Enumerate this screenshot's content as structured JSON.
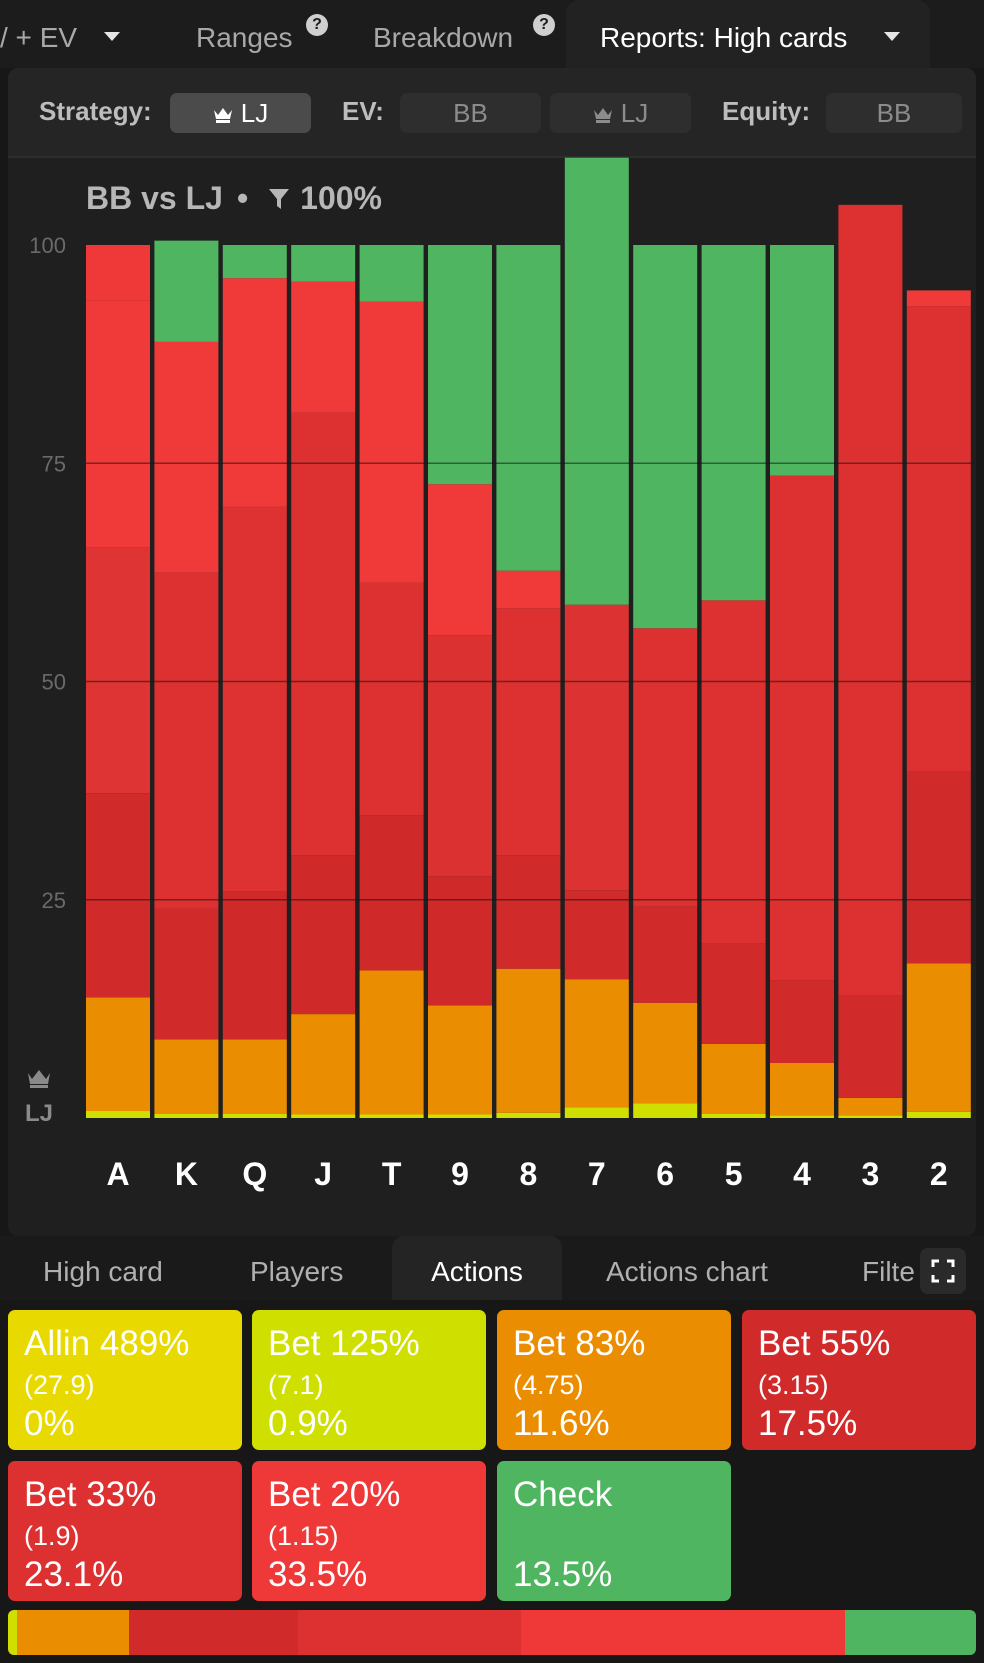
{
  "top_tabs": [
    {
      "label": "/ + EV",
      "has_caret": true
    },
    {
      "label": "Ranges",
      "help": "?"
    },
    {
      "label": "Breakdown",
      "help": "?"
    },
    {
      "label": "Reports: High cards",
      "has_caret": true,
      "active": true
    }
  ],
  "settings": {
    "strategy_label": "Strategy:",
    "strategy_value": "LJ",
    "ev_label": "EV:",
    "ev_options": [
      "BB",
      "LJ"
    ],
    "equity_label": "Equity:",
    "equity_value": "BB"
  },
  "chart_header": {
    "matchup": "BB vs LJ",
    "filter_value": "100%"
  },
  "chart_data": {
    "type": "bar",
    "stacked": true,
    "categories": [
      "A",
      "K",
      "Q",
      "J",
      "T",
      "9",
      "8",
      "7",
      "6",
      "5",
      "4",
      "3",
      "2"
    ],
    "y_ticks": [
      "100",
      "75",
      "50",
      "25"
    ],
    "ylim": [
      0,
      100
    ],
    "grid": true,
    "y_axis_player": "LJ",
    "series": [
      {
        "name": "Allin 489%",
        "color": "#e8d900",
        "values": [
          0,
          0,
          0,
          0,
          0,
          0,
          0,
          0,
          0,
          0,
          0,
          0,
          0
        ]
      },
      {
        "name": "Bet 125%",
        "color": "#cfe000",
        "values": [
          0.8,
          0.5,
          0.5,
          0.4,
          0.4,
          0.4,
          0.6,
          1.2,
          1.7,
          0.5,
          0.3,
          0.3,
          0.7
        ]
      },
      {
        "name": "Bet 83%",
        "color": "#eb8d00",
        "values": [
          13,
          8.5,
          8.5,
          11.5,
          16.5,
          12.5,
          16.5,
          14.7,
          11.5,
          8,
          6,
          2,
          17
        ]
      },
      {
        "name": "Bet 55%",
        "color": "#d12a2a",
        "values": [
          23.4,
          15,
          17,
          18.2,
          17.8,
          14.8,
          13,
          10.2,
          11,
          11.5,
          9.5,
          11.7,
          22
        ]
      },
      {
        "name": "Bet 33%",
        "color": "#dc3130",
        "values": [
          28.2,
          38.5,
          44,
          50.7,
          26.6,
          27.6,
          28.3,
          32.7,
          31.9,
          39.3,
          57.8,
          90.6,
          53.3
        ]
      },
      {
        "name": "Bet 20%",
        "color": "#ef3838",
        "values": [
          28.2,
          26.4,
          26.2,
          15,
          32.2,
          17.3,
          4.3,
          0,
          0,
          0,
          0,
          0,
          1.8
        ]
      },
      {
        "name": "Check",
        "color": "#4fb560",
        "values": [
          6.4,
          11.6,
          3.8,
          4.2,
          6.5,
          27.4,
          37.3,
          51.2,
          43.9,
          40.7,
          26.4,
          0,
          0
        ]
      }
    ],
    "bar_shades": [
      [
        null,
        null,
        null,
        null,
        "#de3434",
        "#f03939",
        "#ef3838"
      ],
      [
        null,
        null,
        null,
        "#d02a2a",
        "#dc3130",
        "#f03939",
        null
      ],
      [
        null,
        null,
        null,
        "#cf2929",
        "#dd3231",
        "#f03939",
        null
      ],
      [
        null,
        null,
        null,
        "#d02929",
        "#dc3130",
        "#f03939",
        null
      ],
      [
        null,
        null,
        null,
        "#cf2929",
        "#dc3130",
        "#f03939",
        null
      ],
      [
        null,
        null,
        null,
        "#cf2929",
        "#dc3131",
        "#f03939",
        null
      ],
      [
        null,
        null,
        null,
        "#d02a2a",
        "#dc3130",
        "#f03939",
        null
      ],
      [
        null,
        null,
        null,
        "#d02a2a",
        "#dd3232",
        "#f03939",
        null
      ],
      [
        null,
        null,
        null,
        "#d02a2a",
        "#dc3130",
        "#f03939",
        null
      ],
      [
        null,
        null,
        null,
        "#d02a2a",
        "#dc3130",
        "#f03939",
        null
      ],
      [
        null,
        null,
        null,
        "#d02a2a",
        "#dc3130",
        "#f03939",
        null
      ],
      [
        null,
        null,
        null,
        "#d02a2a",
        "#dc3130",
        "#f03939",
        null
      ],
      [
        null,
        null,
        null,
        "#d02a2a",
        "#dc3130",
        "#f03939",
        null
      ]
    ]
  },
  "bottom_tabs": [
    {
      "label": "High card"
    },
    {
      "label": "Players"
    },
    {
      "label": "Actions",
      "active": true
    },
    {
      "label": "Actions chart"
    },
    {
      "label": "Filters"
    }
  ],
  "actions": [
    {
      "name": "Allin 489%",
      "size": "(27.9)",
      "pct": "0%",
      "color": "#e8d900"
    },
    {
      "name": "Bet 125%",
      "size": "(7.1)",
      "pct": "0.9%",
      "color": "#cfe000"
    },
    {
      "name": "Bet 83%",
      "size": "(4.75)",
      "pct": "11.6%",
      "color": "#eb8d00"
    },
    {
      "name": "Bet 55%",
      "size": "(3.15)",
      "pct": "17.5%",
      "color": "#d12a2a"
    },
    {
      "name": "Bet 33%",
      "size": "(1.9)",
      "pct": "23.1%",
      "color": "#dc3130"
    },
    {
      "name": "Bet 20%",
      "size": "(1.15)",
      "pct": "33.5%",
      "color": "#ef3838"
    },
    {
      "name": "Check",
      "size": "",
      "pct": "13.5%",
      "color": "#4fb560"
    }
  ],
  "summary_bar": [
    {
      "action": "Bet 125%",
      "value": 0.9,
      "color": "#cfe000"
    },
    {
      "action": "Bet 83%",
      "value": 11.6,
      "color": "#eb8d00"
    },
    {
      "action": "Bet 55%",
      "value": 17.5,
      "color": "#d12a2a"
    },
    {
      "action": "Bet 33%",
      "value": 23.1,
      "color": "#dc3130"
    },
    {
      "action": "Bet 20%",
      "value": 33.5,
      "color": "#ef3838"
    },
    {
      "action": "Check",
      "value": 13.5,
      "color": "#4fb560"
    }
  ]
}
